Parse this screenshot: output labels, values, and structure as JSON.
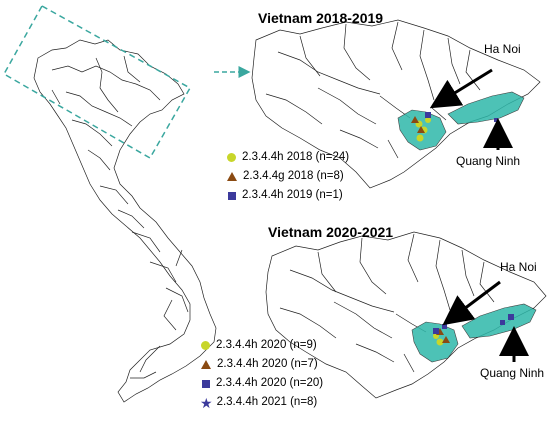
{
  "colors": {
    "dashed_box": "#3aa79f",
    "highlight_fill": "#2fb8aa",
    "yellow_green": "#c8d62a",
    "brown": "#8a4a12",
    "navy": "#3c3a9c",
    "border": "#222222"
  },
  "panel_2018": {
    "title": "Vietnam 2018-2019",
    "label_hanoi": "Ha Noi",
    "label_quangninh": "Quang Ninh",
    "legend": [
      {
        "symbol": "circle",
        "color": "#c8d62a",
        "text": "2.3.4.4h 2018 (n=24)"
      },
      {
        "symbol": "triangle",
        "color": "#8a4a12",
        "text": "2.3.4.4g 2018 (n=8)"
      },
      {
        "symbol": "square",
        "color": "#3c3a9c",
        "text": "2.3.4.4h 2019 (n=1)"
      }
    ]
  },
  "panel_2020": {
    "title": "Vietnam 2020-2021",
    "label_hanoi": "Ha Noi",
    "label_quangninh": "Quang Ninh",
    "legend": [
      {
        "symbol": "circle",
        "color": "#c8d62a",
        "text": "2.3.4.4h 2020 (n=9)"
      },
      {
        "symbol": "triangle",
        "color": "#8a4a12",
        "text": "2.3.4.4h 2020 (n=7)"
      },
      {
        "symbol": "square",
        "color": "#3c3a9c",
        "text": "2.3.4.4h 2020 (n=20)"
      },
      {
        "symbol": "star",
        "color": "#3c3a9c",
        "text": "2.3.4.4h 2021 (n=8)"
      }
    ]
  }
}
